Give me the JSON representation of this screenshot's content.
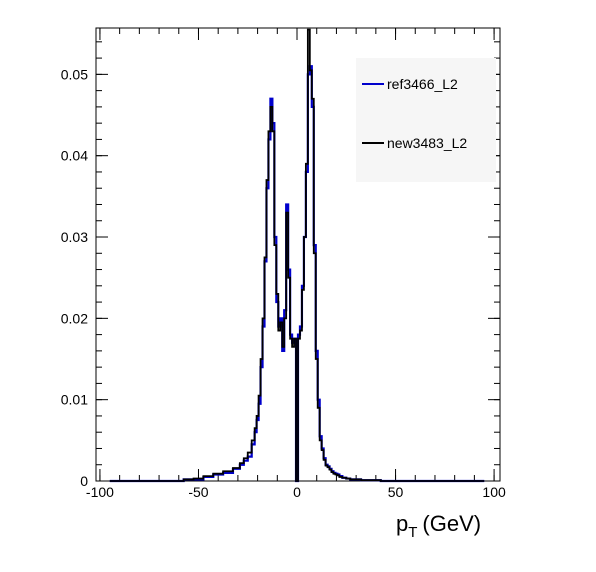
{
  "chart_data": {
    "type": "line",
    "subtype": "step-histogram",
    "title": "",
    "xlabel": "p",
    "xlabel_sub": "T",
    "xlabel_unit": "(GeV)",
    "ylabel": "",
    "xlim": [
      -102,
      103
    ],
    "ylim": [
      0,
      0.0557
    ],
    "x_ticks": [
      -100,
      -50,
      0,
      50,
      100
    ],
    "x_tick_labels": [
      "-100",
      "-50",
      "0",
      "50",
      "100"
    ],
    "y_ticks": [
      0,
      0.01,
      0.02,
      0.03,
      0.04,
      0.05
    ],
    "y_tick_labels": [
      "0",
      "0.01",
      "0.02",
      "0.03",
      "0.04",
      "0.05"
    ],
    "grid": false,
    "legend_position": "top-right",
    "x": [
      -90,
      -80,
      -70,
      -60,
      -55,
      -50,
      -45,
      -40,
      -35,
      -30,
      -28,
      -26,
      -24,
      -22,
      -21,
      -20,
      -19,
      -18,
      -17,
      -16,
      -15,
      -14,
      -13,
      -12,
      -11,
      -10,
      -9,
      -8,
      -7,
      -6,
      -5,
      -4,
      -3,
      -2,
      -1,
      0,
      1,
      2,
      3,
      4,
      5,
      6,
      7,
      8,
      9,
      10,
      11,
      12,
      13,
      14,
      15,
      16,
      17,
      18,
      19,
      20,
      21,
      22,
      24,
      26,
      28,
      30,
      35,
      40,
      45,
      50,
      60,
      70,
      80,
      90
    ],
    "series": [
      {
        "name": "ref3466_L2",
        "color": "#0000cc",
        "values": [
          0.0,
          0.0,
          0.0,
          0.0,
          0.0002,
          0.0002,
          0.0005,
          0.0008,
          0.001,
          0.0015,
          0.002,
          0.0025,
          0.003,
          0.0045,
          0.006,
          0.0075,
          0.0095,
          0.014,
          0.019,
          0.027,
          0.036,
          0.042,
          0.047,
          0.044,
          0.03,
          0.022,
          0.019,
          0.02,
          0.016,
          0.021,
          0.034,
          0.026,
          0.018,
          0.017,
          0.0175,
          0.0,
          0.018,
          0.019,
          0.024,
          0.03,
          0.038,
          0.05,
          0.051,
          0.046,
          0.029,
          0.016,
          0.01,
          0.0055,
          0.004,
          0.0028,
          0.002,
          0.0018,
          0.0015,
          0.0012,
          0.001,
          0.0009,
          0.0008,
          0.0006,
          0.0004,
          0.0003,
          0.0002,
          0.0002,
          0.0001,
          0.0001,
          0.0,
          0.0,
          0.0,
          0.0,
          0.0,
          0.0
        ]
      },
      {
        "name": "new3483_L2",
        "color": "#000000",
        "values": [
          0.0,
          0.0,
          0.0,
          0.0,
          0.0002,
          0.0003,
          0.0006,
          0.0009,
          0.0012,
          0.0016,
          0.0022,
          0.0028,
          0.0035,
          0.005,
          0.0065,
          0.008,
          0.0105,
          0.015,
          0.02,
          0.0275,
          0.037,
          0.043,
          0.046,
          0.043,
          0.029,
          0.023,
          0.0185,
          0.0195,
          0.0165,
          0.02,
          0.033,
          0.025,
          0.0175,
          0.0165,
          0.0175,
          0.0,
          0.0175,
          0.0185,
          0.0235,
          0.03,
          0.039,
          0.0555,
          0.0505,
          0.047,
          0.028,
          0.015,
          0.009,
          0.005,
          0.0038,
          0.0026,
          0.0019,
          0.0017,
          0.0014,
          0.0011,
          0.0009,
          0.0008,
          0.0007,
          0.0005,
          0.0004,
          0.0003,
          0.0002,
          0.0002,
          0.0001,
          0.0001,
          0.0,
          0.0,
          0.0,
          0.0,
          0.0,
          0.0
        ]
      }
    ]
  }
}
